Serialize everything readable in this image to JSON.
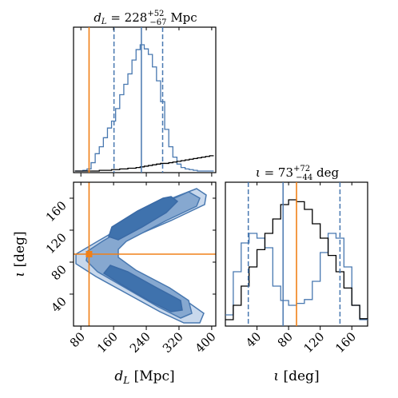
{
  "chart_data": {
    "type": "corner",
    "colors": {
      "posterior": "#4878b0",
      "posterior_fill_dark": "#3f72ad",
      "posterior_fill_mid": "#86a8d0",
      "posterior_fill_light": "#c8d8ec",
      "prior": "#000000",
      "truth": "#f08018"
    },
    "parameters": [
      {
        "key": "dL",
        "title_var": "d",
        "title_sub": "L",
        "title_value": "228",
        "title_plus": "+52",
        "title_minus": "−67",
        "title_unit": "Mpc",
        "axis_var": "d",
        "axis_sub": "L",
        "axis_unit": "[Mpc]",
        "range": [
          62,
          410
        ],
        "ticks": [
          80,
          160,
          240,
          320,
          400
        ],
        "tick_labels": [
          "80",
          "160",
          "240",
          "320",
          "400"
        ],
        "median": 228,
        "q_low": 161,
        "q_high": 280,
        "truth": 100,
        "hist_centers": [
          70,
          80,
          90,
          100,
          110,
          120,
          130,
          140,
          150,
          160,
          170,
          180,
          190,
          200,
          210,
          220,
          230,
          240,
          250,
          260,
          270,
          280,
          290,
          300,
          310,
          320,
          330,
          340,
          350,
          360,
          370,
          380,
          390,
          400
        ],
        "posterior_hist": [
          0,
          0,
          1,
          3,
          12,
          25,
          35,
          48,
          62,
          72,
          90,
          110,
          125,
          140,
          160,
          175,
          182,
          176,
          168,
          150,
          130,
          100,
          60,
          35,
          20,
          10,
          5,
          3,
          2,
          1,
          0,
          0,
          0,
          0
        ],
        "prior_hist": [
          0,
          0,
          0,
          0,
          0,
          0,
          1,
          1,
          1,
          2,
          2,
          3,
          3,
          4,
          4,
          5,
          6,
          7,
          8,
          9,
          10,
          11,
          11,
          12,
          13,
          14,
          15,
          16,
          17,
          18,
          19,
          20,
          21,
          22
        ]
      },
      {
        "key": "iota",
        "title_var": "ι",
        "title_value": "73",
        "title_plus": "+72",
        "title_minus": "−44",
        "title_unit": "deg",
        "axis_var": "ι",
        "axis_unit": "[deg]",
        "range": [
          0,
          180
        ],
        "ticks": [
          40,
          80,
          120,
          160
        ],
        "tick_labels": [
          "40",
          "80",
          "120",
          "160"
        ],
        "median": 73,
        "q_low": 29,
        "q_high": 145,
        "truth": 90,
        "hist_centers": [
          5,
          15,
          25,
          35,
          45,
          55,
          65,
          75,
          85,
          95,
          105,
          115,
          125,
          135,
          145,
          155,
          165,
          175
        ],
        "posterior_hist": [
          10,
          55,
          85,
          95,
          90,
          80,
          40,
          25,
          20,
          22,
          26,
          45,
          75,
          95,
          90,
          60,
          20,
          5
        ],
        "prior_hist": [
          5,
          20,
          40,
          60,
          78,
          95,
          110,
          125,
          130,
          128,
          120,
          105,
          90,
          72,
          55,
          38,
          20,
          6
        ]
      }
    ],
    "joint_2d": {
      "type": "contour",
      "levels": [
        "39%",
        "86%",
        "99%"
      ],
      "crosshair": {
        "dL": 100,
        "iota": 90
      }
    }
  }
}
